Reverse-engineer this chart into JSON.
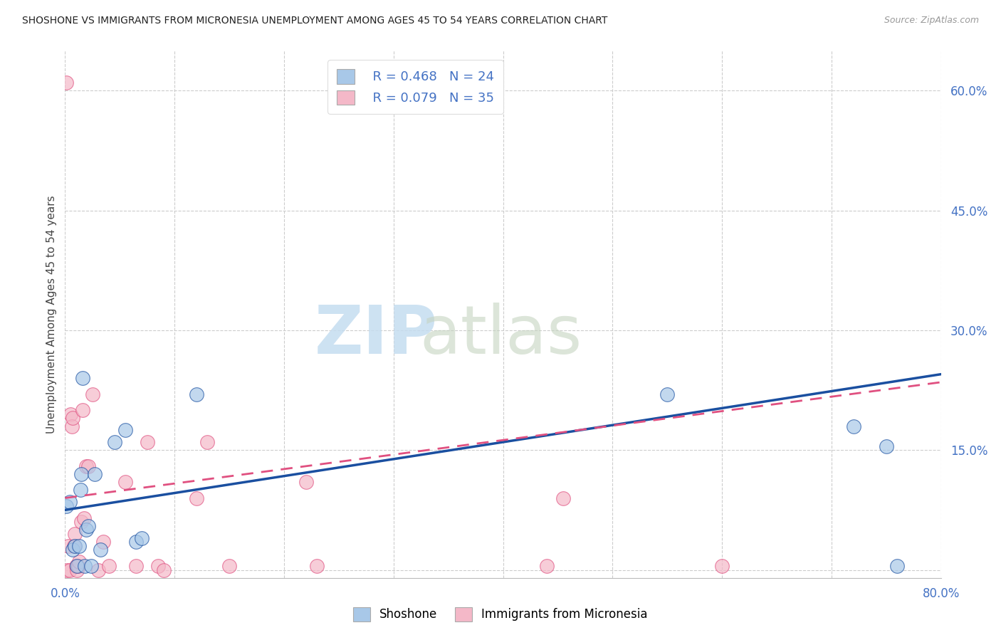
{
  "title": "SHOSHONE VS IMMIGRANTS FROM MICRONESIA UNEMPLOYMENT AMONG AGES 45 TO 54 YEARS CORRELATION CHART",
  "source": "Source: ZipAtlas.com",
  "xlabel_color": "#4472c4",
  "ylabel": "Unemployment Among Ages 45 to 54 years",
  "shoshone_color": "#a8c8e8",
  "micronesia_color": "#f4b8c8",
  "shoshone_line_color": "#1a4fa0",
  "micronesia_line_color": "#e05080",
  "legend_r1": "R = 0.468",
  "legend_n1": "N = 24",
  "legend_r2": "R = 0.079",
  "legend_n2": "N = 35",
  "xlim": [
    0.0,
    0.8
  ],
  "ylim": [
    -0.01,
    0.65
  ],
  "yticks_right": [
    0.0,
    0.15,
    0.3,
    0.45,
    0.6
  ],
  "ytick_labels_right": [
    "",
    "15.0%",
    "30.0%",
    "45.0%",
    "60.0%"
  ],
  "xtick_vals": [
    0.0,
    0.1,
    0.2,
    0.3,
    0.4,
    0.5,
    0.6,
    0.7,
    0.8
  ],
  "xtick_labels": [
    "0.0%",
    "",
    "",
    "",
    "",
    "",
    "",
    "",
    "80.0%"
  ],
  "shoshone_x": [
    0.001,
    0.004,
    0.007,
    0.009,
    0.011,
    0.013,
    0.014,
    0.015,
    0.016,
    0.018,
    0.019,
    0.021,
    0.024,
    0.027,
    0.032,
    0.045,
    0.055,
    0.065,
    0.07,
    0.12,
    0.55,
    0.72,
    0.75,
    0.76
  ],
  "shoshone_y": [
    0.08,
    0.085,
    0.025,
    0.03,
    0.005,
    0.03,
    0.1,
    0.12,
    0.24,
    0.005,
    0.05,
    0.055,
    0.005,
    0.12,
    0.025,
    0.16,
    0.175,
    0.035,
    0.04,
    0.22,
    0.22,
    0.18,
    0.155,
    0.005
  ],
  "micronesia_x": [
    0.001,
    0.002,
    0.003,
    0.004,
    0.005,
    0.006,
    0.007,
    0.008,
    0.009,
    0.01,
    0.011,
    0.012,
    0.013,
    0.015,
    0.016,
    0.017,
    0.019,
    0.021,
    0.025,
    0.03,
    0.035,
    0.04,
    0.055,
    0.065,
    0.075,
    0.085,
    0.09,
    0.12,
    0.13,
    0.15,
    0.22,
    0.23,
    0.44,
    0.455,
    0.6
  ],
  "micronesia_y": [
    0.61,
    0.0,
    0.03,
    0.0,
    0.195,
    0.18,
    0.19,
    0.03,
    0.045,
    0.005,
    0.0,
    0.005,
    0.01,
    0.06,
    0.2,
    0.065,
    0.13,
    0.13,
    0.22,
    0.0,
    0.035,
    0.005,
    0.11,
    0.005,
    0.16,
    0.005,
    0.0,
    0.09,
    0.16,
    0.005,
    0.11,
    0.005,
    0.005,
    0.09,
    0.005
  ],
  "shoshone_trendline_x0": 0.0,
  "shoshone_trendline_y0": 0.075,
  "shoshone_trendline_x1": 0.8,
  "shoshone_trendline_y1": 0.245,
  "micronesia_trendline_x0": 0.0,
  "micronesia_trendline_y0": 0.09,
  "micronesia_trendline_x1": 0.8,
  "micronesia_trendline_y1": 0.235
}
